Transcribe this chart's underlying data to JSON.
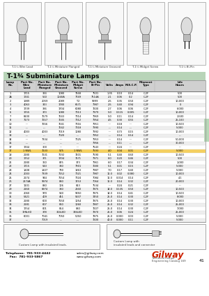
{
  "title": "T-1¾ Subminiature Lamps",
  "page_num": "41",
  "bg_color": "#ffffff",
  "col_headers_line1": [
    "Lamp",
    "Part No.",
    "Part No.",
    "Part No.",
    "Part No.",
    "Part No.",
    "",
    "",
    "",
    "Filament",
    "Life"
  ],
  "col_headers_line2": [
    "No.",
    "Wire",
    "Miniature",
    "Miniature",
    "Midget",
    "Bi-Pin",
    "Volts",
    "Amps",
    "M.S.C.P.",
    "Type",
    "Hours"
  ],
  "col_headers_line3": [
    "",
    "Lead",
    "Flanged",
    "Grooved",
    "Screw",
    "",
    "",
    "",
    "",
    "",
    ""
  ],
  "rows": [
    [
      "1",
      "1715",
      "334",
      "1080",
      "7668",
      "7501",
      "1.35",
      "0.10",
      "0.14",
      "C-2F",
      "500"
    ],
    [
      "1A",
      "1741",
      "560",
      "1040A",
      "7749",
      "7514A",
      "2.1",
      "0.06",
      "0.2",
      "C-2F",
      "500"
    ],
    [
      "2",
      "1989",
      "2059",
      "2089",
      "T-2",
      "9999",
      "2.5",
      "0.35",
      "0.50",
      "C-2F",
      "10,000"
    ],
    [
      "3",
      "4063",
      "343",
      "1780",
      "6671",
      "7987",
      "2.5",
      "0.40",
      "0.94",
      "C-2F",
      "0"
    ],
    [
      "4",
      "1739",
      "336",
      "1704",
      "6080",
      "7600",
      "2.7",
      "0.06",
      "0.06",
      "C-2F",
      "6,000"
    ],
    [
      "6",
      "1755",
      "373",
      "1080",
      "7013",
      "7979",
      "5.0",
      "0.115",
      "0.005",
      "C-2F",
      "10,000"
    ],
    [
      "7",
      "8100",
      "7679",
      "7643",
      "7014",
      "7969",
      "5.0",
      "0.11",
      "0.14",
      "C-2F",
      "1,500"
    ],
    [
      "8",
      "7173",
      "7657",
      "7645",
      "7012",
      "7954",
      "4.5",
      "0.30",
      "0.55",
      "C-2F",
      "25,100"
    ],
    [
      "10",
      "---",
      "7656",
      "7641",
      "7016",
      "7951",
      "---",
      "0.18",
      "---",
      "C-2F",
      "10,500"
    ],
    [
      "11",
      "---",
      "---",
      "7642",
      "7018",
      "7990",
      "---",
      "0.14",
      "---",
      "C-2F",
      "5,000"
    ],
    [
      "12",
      "4003",
      "4003",
      "7019",
      "1080",
      "7992",
      "---",
      "0.73",
      "0.15",
      "C-2F",
      "10,000"
    ],
    [
      "13",
      "---",
      "---",
      "7020",
      "---",
      "7952",
      "---",
      "0.14",
      "0.14",
      "C-2F",
      "---"
    ],
    [
      "14",
      "---",
      "7334",
      "---",
      "7025",
      "7953",
      "---",
      "0.14",
      "---",
      "C-2F",
      "50,000"
    ],
    [
      "16",
      "---",
      "---",
      "---",
      "---",
      "7956",
      "---",
      "0.11",
      "---",
      "C-2F",
      "30,000"
    ],
    [
      "17",
      "1744",
      "300",
      "---",
      "---",
      "7543",
      "---",
      "0.24",
      "---",
      "C-2F",
      "---"
    ],
    [
      "17",
      "1 NWL",
      "7633",
      "575",
      "1 NWL",
      "7593",
      "4.0",
      "0.04",
      "0.01",
      "C-2F",
      "5,000"
    ],
    [
      "18",
      "2180",
      "7631",
      "7192",
      "7201",
      "7590",
      "5.1",
      "0.40",
      "0.60",
      "C-2F",
      "10,500"
    ],
    [
      "20",
      "1752",
      "371",
      "1704",
      "7671",
      "7971",
      "6.0",
      "0.20",
      "0.46",
      "C-2F",
      "500"
    ],
    [
      "21",
      "2180",
      "360",
      "875",
      "373",
      "7961",
      "6.0",
      "0.17",
      "0.34",
      "C-2F",
      "1,000"
    ],
    [
      "22",
      "1715",
      "543",
      "380",
      "7901",
      "7680",
      "5.1",
      "0.01",
      "0.15",
      "C-2F",
      "5,000"
    ],
    [
      "23",
      "1808",
      "1807",
      "790",
      "1963",
      "7987",
      "7.0",
      "0.17",
      "0.40",
      "C-2F",
      "5,000"
    ],
    [
      "24",
      "2003",
      "7339",
      "7152",
      "7021",
      "7987",
      "11.0",
      "0.02",
      "0.080",
      "C-2F",
      "10,000"
    ],
    [
      "25",
      "2174",
      "944",
      "7154",
      "7024",
      "7084",
      "11.0",
      "0.014",
      "0.14",
      "C-2F",
      "4.1"
    ],
    [
      "26",
      "2174A",
      "9974",
      "880",
      "1753",
      "7064",
      "11.0",
      "0.14",
      "0.32",
      "C-2F",
      "20,000"
    ],
    [
      "27",
      "1101",
      "830",
      "106",
      "813",
      "7534",
      "---",
      "0.24",
      "0.21",
      "C-2F",
      "---"
    ],
    [
      "29",
      "2160",
      "8974",
      "380",
      "2160",
      "7875",
      "14.0",
      "0.135",
      "0.50",
      "C-2F",
      "10,500"
    ],
    [
      "30",
      "2060",
      "970",
      "540",
      "9050",
      "7875",
      "14.0",
      "0.14",
      "0.41",
      "C-2F",
      "10,500"
    ],
    [
      "31",
      "5421",
      "409",
      "451",
      "5437",
      "7450",
      "25.0",
      "0.14",
      "0.30",
      "C-2F",
      "8,000"
    ],
    [
      "32",
      "2180",
      "600",
      "7150",
      "1054",
      "7875",
      "25.0",
      "0.14",
      "0.30",
      "C-2F",
      "10,000"
    ],
    [
      "33",
      "2181",
      "607",
      "860",
      "1060",
      "7887",
      "25.0",
      "0.14",
      "0.32",
      "C-2F",
      "25,000"
    ],
    [
      "34",
      "1754",
      "801",
      "854",
      "880",
      "7607",
      "25.0",
      "0.14",
      "0.30",
      "C-2F",
      "7,000"
    ],
    [
      "35",
      "17NLED",
      "378",
      "324LED",
      "336LED",
      "7870",
      "25.0",
      "0.06",
      "0.24",
      "C-2F",
      "25,000"
    ],
    [
      "36",
      "6001",
      "7041",
      "7050",
      "5050",
      "7875",
      "25.0",
      "0.000",
      "0.03",
      "C-2F",
      "5,000"
    ],
    [
      "37",
      "---",
      "7019",
      "---",
      "---",
      "7600",
      "40.0",
      "0.000",
      "0.11",
      "C-2F",
      "5,000"
    ]
  ],
  "footer_tel": "Telephone:  781-933-4442",
  "footer_fax": "    Fax:  781-933-5867",
  "footer_email": "sales@gilway.com",
  "footer_web": "www.gilway.com",
  "footer_brand": "Gilway",
  "footer_sub1": "Technical Lamps",
  "footer_sub2": "Engineering Catalog 169",
  "lamp_labels": [
    "T-1¾ Wire Lead",
    "T-1¾ Miniature Flanged",
    "T-1¾ Miniature Grooved",
    "T-1¾ Midget Screw",
    "T-1¾ Bi-Pin"
  ],
  "custom_lamp1": "Custom Lamp with insulated leads.",
  "custom_lamp2": "Custom Lamp with\ninsulated leads and connector",
  "highlight_row": 15,
  "title_bg": "#b8d4b8",
  "alt_row_bg": "#e8e8e8",
  "header_row_bg": "#d0d0d0",
  "sidebar_color": "#b8d8b8"
}
